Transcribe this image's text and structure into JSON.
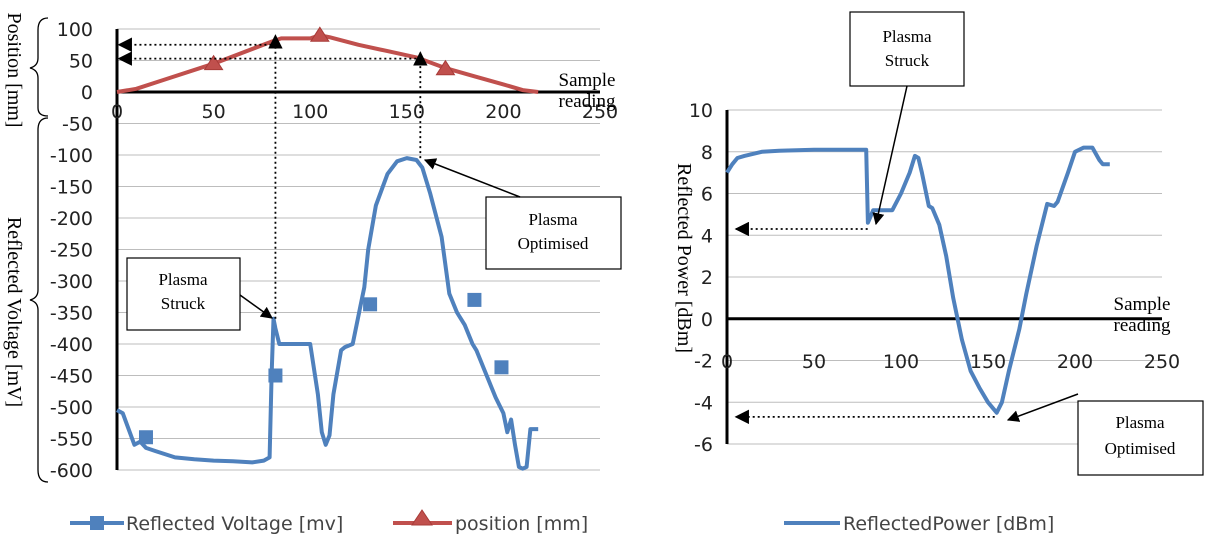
{
  "chart_data": [
    {
      "type": "line",
      "panel": "left",
      "ylabel_top": "Position [mm]",
      "ylabel_bottom": "Reflected Voltage [mV]",
      "xlabel": "Sample reading",
      "xlabel_lines": [
        "Sample",
        "reading"
      ],
      "x_ticks": [
        "0",
        "50",
        "100",
        "150",
        "200",
        "250"
      ],
      "xlim": [
        0,
        250
      ],
      "y_ticks": [
        "100",
        "50",
        "0",
        "-50",
        "-100",
        "-150",
        "-200",
        "-250",
        "-300",
        "-350",
        "-400",
        "-450",
        "-500",
        "-550",
        "-600"
      ],
      "ylim": [
        -600,
        100
      ],
      "grid": true,
      "legend_position": "bottom",
      "series": [
        {
          "name": "Reflected Voltage [mv]",
          "color": "#4f81bd",
          "marker": "square",
          "x": [
            0,
            3,
            6,
            9,
            12,
            15,
            20,
            30,
            40,
            50,
            60,
            70,
            76,
            79,
            80,
            81,
            82,
            84,
            90,
            100,
            104,
            106,
            108,
            110,
            112,
            116,
            118,
            122,
            126,
            128,
            130,
            134,
            140,
            145,
            150,
            155,
            158,
            162,
            168,
            172,
            176,
            180,
            184,
            186,
            190,
            194,
            196,
            200,
            202,
            204,
            206,
            208,
            210,
            212,
            214,
            218
          ],
          "y": [
            -505,
            -510,
            -535,
            -560,
            -555,
            -565,
            -570,
            -580,
            -583,
            -585,
            -586,
            -588,
            -585,
            -580,
            -450,
            -360,
            -375,
            -400,
            -400,
            -400,
            -480,
            -540,
            -560,
            -545,
            -480,
            -410,
            -405,
            -400,
            -340,
            -310,
            -250,
            -180,
            -130,
            -110,
            -105,
            -108,
            -120,
            -160,
            -230,
            -320,
            -350,
            -370,
            -400,
            -410,
            -440,
            -470,
            -485,
            -510,
            -540,
            -520,
            -560,
            -595,
            -598,
            -595,
            -535,
            -535
          ],
          "markers_x": [
            15,
            82,
            131,
            185,
            199
          ],
          "markers_y": [
            -548,
            -450,
            -337,
            -330,
            -437
          ]
        },
        {
          "name": "position [mm]",
          "color": "#c0504d",
          "marker": "triangle",
          "x": [
            0,
            10,
            25,
            50,
            80,
            85,
            100,
            105,
            110,
            125,
            140,
            155,
            170,
            185,
            200,
            210,
            218
          ],
          "y": [
            0,
            5,
            20,
            45,
            80,
            85,
            85,
            90,
            87,
            75,
            65,
            55,
            38,
            25,
            12,
            3,
            0
          ],
          "markers_x": [
            50,
            105,
            170
          ],
          "markers_y": [
            45,
            90,
            37
          ]
        }
      ],
      "annotations": [
        {
          "text_lines": [
            "Plasma",
            "Struck"
          ]
        },
        {
          "text_lines": [
            "Plasma",
            "Optimised"
          ]
        }
      ]
    },
    {
      "type": "line",
      "panel": "right",
      "ylabel": "Reflected Power [dBm]",
      "xlabel": "Sample reading",
      "xlabel_lines": [
        "Sample",
        "reading"
      ],
      "x_ticks": [
        "0",
        "50",
        "100",
        "150",
        "200",
        "250"
      ],
      "xlim": [
        0,
        250
      ],
      "y_ticks": [
        "10",
        "8",
        "6",
        "4",
        "2",
        "0",
        "-2",
        "-4",
        "-6"
      ],
      "ylim": [
        -6,
        10
      ],
      "grid": true,
      "legend_position": "bottom",
      "series": [
        {
          "name": "ReflectedPower [dBm]",
          "color": "#4f81bd",
          "x": [
            0,
            3,
            6,
            10,
            20,
            30,
            50,
            70,
            80,
            81,
            82,
            84,
            86,
            95,
            100,
            105,
            108,
            110,
            112,
            116,
            118,
            122,
            126,
            130,
            135,
            140,
            145,
            150,
            155,
            158,
            162,
            168,
            172,
            178,
            184,
            188,
            190,
            196,
            200,
            205,
            210,
            214,
            216,
            218,
            220
          ],
          "y": [
            7.0,
            7.4,
            7.7,
            7.8,
            8.0,
            8.05,
            8.1,
            8.1,
            8.1,
            4.6,
            4.8,
            5.2,
            5.2,
            5.2,
            6.0,
            7.0,
            7.8,
            7.7,
            7.0,
            5.4,
            5.3,
            4.5,
            3.0,
            1.0,
            -1.0,
            -2.5,
            -3.3,
            -4.0,
            -4.5,
            -4.0,
            -2.5,
            -0.5,
            1.2,
            3.5,
            5.5,
            5.4,
            5.6,
            7.0,
            8.0,
            8.2,
            8.2,
            7.6,
            7.4,
            7.4,
            7.4
          ]
        }
      ],
      "annotations": [
        {
          "text_lines": [
            "Plasma",
            "Struck"
          ]
        },
        {
          "text_lines": [
            "Plasma",
            "Optimised"
          ]
        }
      ]
    }
  ]
}
